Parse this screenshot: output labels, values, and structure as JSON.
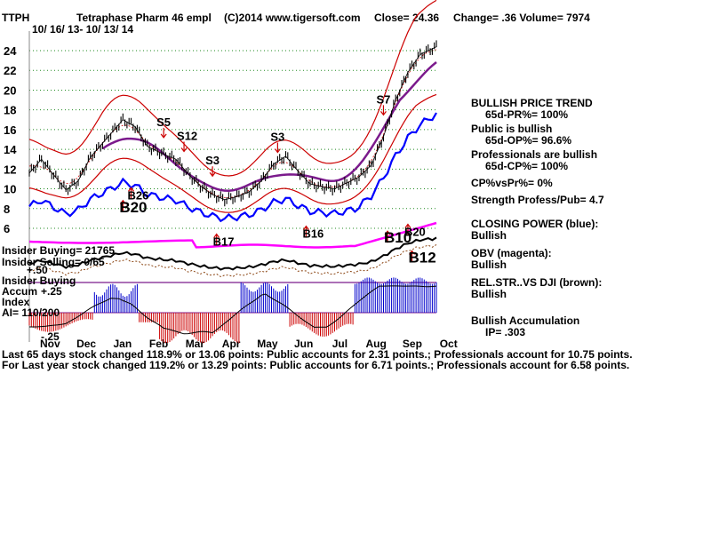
{
  "header": {
    "ticker": "TTPH",
    "company": "Tetraphase Pharm 46 empl",
    "copyright": "(C)2014 www.tigersoft.com",
    "close": "Close=  24.36",
    "change": "Change= .36 Volume= 7974",
    "date_range": "10/ 16/ 13- 10/ 13/ 14"
  },
  "chart_data": {
    "type": "line",
    "y_ticks": [
      24,
      22,
      20,
      18,
      16,
      14,
      12,
      10,
      8,
      6
    ],
    "ylim": [
      4.2,
      25.5
    ],
    "grid": true,
    "x_labels": [
      "Nov",
      "Dec",
      "Jan",
      "Feb",
      "Mar",
      "Apr",
      "May",
      "Jun",
      "Jul",
      "Aug",
      "Sep",
      "Oct"
    ],
    "price_series": {
      "t": [
        0,
        3,
        6,
        9,
        12,
        15,
        19,
        23,
        26,
        29,
        33,
        36,
        39,
        42,
        45,
        48,
        51,
        54,
        57,
        60,
        63,
        66,
        69,
        72,
        75,
        78,
        81,
        84,
        87,
        90,
        93,
        96,
        100
      ],
      "price": [
        11.6,
        13.0,
        11.4,
        9.9,
        10.8,
        13.2,
        15.1,
        17.0,
        16.3,
        14.3,
        13.5,
        13.0,
        11.5,
        10.3,
        9.4,
        8.9,
        9.2,
        9.7,
        10.8,
        12.5,
        13.3,
        11.8,
        10.5,
        10.2,
        10.0,
        10.6,
        11.2,
        12.4,
        15.3,
        19.0,
        21.8,
        23.6,
        24.4
      ]
    },
    "signals": [
      {
        "label": "S5",
        "t": 33,
        "price": 15.1,
        "dir": "down"
      },
      {
        "label": "S12",
        "t": 38,
        "price": 13.7,
        "dir": "down"
      },
      {
        "label": "S3",
        "t": 45,
        "price": 11.2,
        "dir": "down"
      },
      {
        "label": "S3",
        "t": 61,
        "price": 13.6,
        "dir": "down"
      },
      {
        "label": "S7",
        "t": 87,
        "price": 17.4,
        "dir": "down"
      },
      {
        "label": "B26",
        "t": 25,
        "price": 10.2,
        "dir": "up"
      },
      {
        "label": "B20",
        "t": 23,
        "price": 8.9,
        "dir": "up"
      },
      {
        "label": "B17",
        "t": 46,
        "price": 5.5,
        "dir": "up"
      },
      {
        "label": "B16",
        "t": 68,
        "price": 6.3,
        "dir": "up"
      },
      {
        "label": "B20",
        "t": 93,
        "price": 6.5,
        "dir": "up"
      },
      {
        "label": "B10",
        "t": 88,
        "price": 5.8,
        "dir": "up"
      },
      {
        "label": "B12",
        "t": 94,
        "price": 3.8,
        "dir": "up"
      }
    ],
    "insider": {
      "buying": "Insider Buying= 21765",
      "selling": "Insider Selling= 0/65",
      "zero_label": "+.50",
      "buying2": "Insider Buying"
    },
    "accum": {
      "title": "Accum",
      "plus": "+.25",
      "index": "Index",
      "ai": "AI= 110/200",
      "minus": "-.25"
    }
  },
  "side_panel": {
    "trend_title": "BULLISH PRICE TREND",
    "pr": "65d-PR%= 100%",
    "public": "Public is bullish",
    "op": "65d-OP%= 96.6%",
    "pros": "Professionals are bullish",
    "cp": "65d-CP%= 100%",
    "cpvspr": "CP%vsPr%=  0%",
    "strength": "Strength Profess/Pub= 4.7",
    "closing_power": "CLOSING POWER (blue):",
    "cp_state": "Bullish",
    "obv": "OBV (magenta):",
    "obv_state": "Bullish",
    "relstr": "REL.STR..VS DJI (brown):",
    "relstr_state": "Bullish",
    "accum_title": "Bullish Accumulation",
    "ip": "IP=  .303"
  },
  "footer": {
    "line1": "Last 65 days stock changed  118.9% or  13.06 points:  Public accounts for  2.31 points.;  Professionals account for  10.75 points.",
    "line2": "For Last year stock changed  119.2% or  13.29 points:  Public accounts for  6.71 points.;  Professionals account for  6.58 points."
  },
  "colors": {
    "price": "#000000",
    "band": "#cc0000",
    "ma": "#7b1a8c",
    "closing_power": "#0000ff",
    "obv": "#ff00ff",
    "relstr": "#8b4513",
    "grid": "#228b22",
    "accum_pos": "#0000cc",
    "accum_neg": "#cc0000",
    "signal": "#cc0000"
  }
}
